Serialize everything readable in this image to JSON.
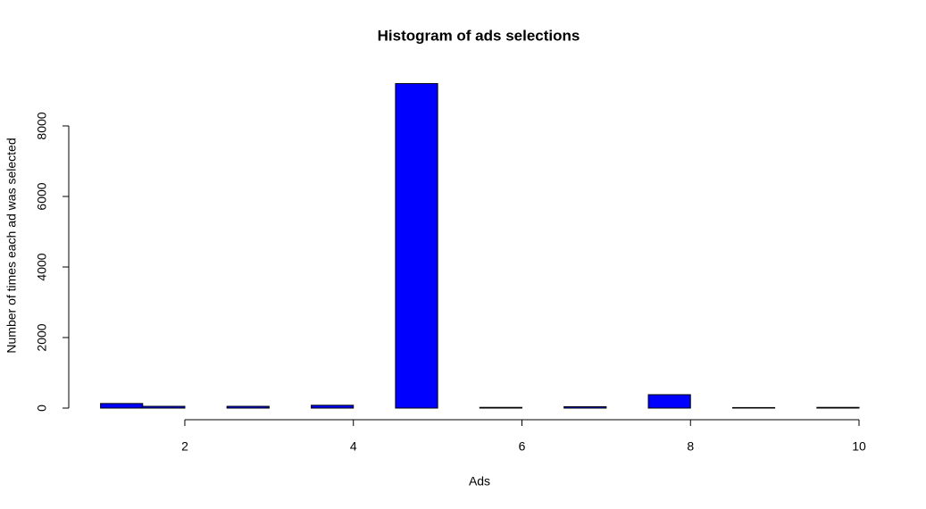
{
  "chart_data": {
    "type": "histogram",
    "title": "Histogram of ads selections",
    "x_label": "Ads",
    "y_label": "Number of times each ad was selected",
    "bins": [
      1,
      1.5,
      2,
      2.5,
      3,
      3.5,
      4,
      4.5,
      5,
      5.5,
      6,
      6.5,
      7,
      7.5,
      8,
      8.5,
      9,
      9.5,
      10
    ],
    "counts": [
      130,
      50,
      0,
      50,
      0,
      80,
      0,
      9200,
      0,
      20,
      0,
      40,
      0,
      380,
      0,
      15,
      0,
      20
    ],
    "color": "#0000ff",
    "xlim": [
      1,
      10
    ],
    "xticks": [
      2,
      4,
      6,
      8,
      10
    ],
    "ylim": [
      0,
      9200
    ],
    "yticks": [
      0,
      2000,
      4000,
      6000,
      8000
    ]
  }
}
